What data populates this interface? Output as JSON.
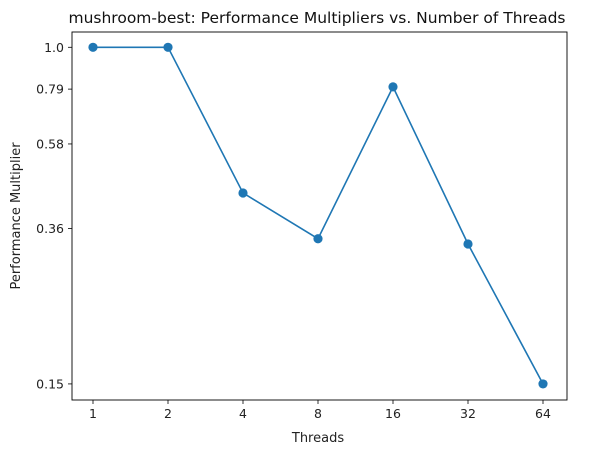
{
  "chart_data": {
    "type": "line",
    "title": "mushroom-best: Performance Multipliers vs. Number of Threads",
    "xlabel": "Threads",
    "ylabel": "Performance Multiplier",
    "x": [
      "1",
      "2",
      "4",
      "8",
      "16",
      "32",
      "64"
    ],
    "series": [
      {
        "values": [
          1.0,
          1.0,
          0.44,
          0.34,
          0.8,
          0.33,
          0.15
        ]
      }
    ],
    "yticks": [
      0.15,
      0.36,
      0.58,
      0.79,
      1.0
    ],
    "ytick_labels": [
      "0.15",
      "0.36",
      "0.58",
      "0.79",
      "1.0"
    ],
    "yscale": "log",
    "ylim": [
      0.137,
      1.09
    ],
    "grid": false,
    "line_color": "#1f77b4"
  }
}
